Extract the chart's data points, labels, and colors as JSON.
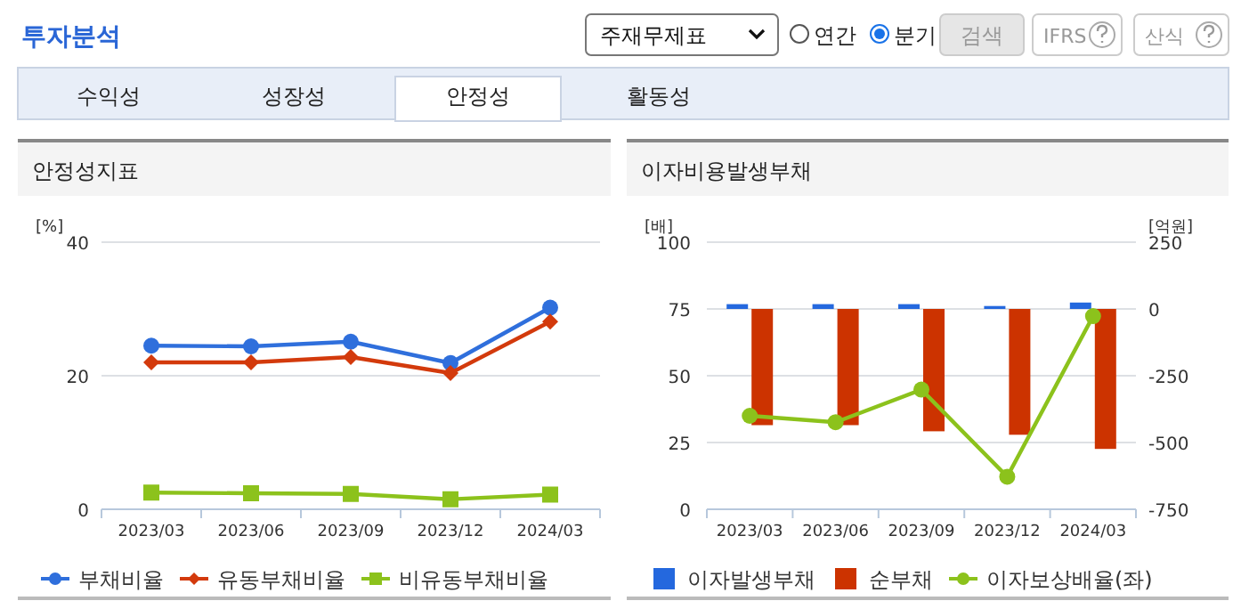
{
  "chart_data": [
    {
      "type": "other",
      "title": "투자분석",
      "annotations": [
        "주재무제표",
        "연간",
        "분기",
        "검색",
        "IFRS",
        "산식",
        "수익성",
        "성장성",
        "안정성",
        "활동성"
      ]
    },
    {
      "type": "line",
      "title": "안정성지표",
      "ylabel": "[%]",
      "categories": [
        "2023/03",
        "2023/06",
        "2023/09",
        "2023/12",
        "2024/03"
      ],
      "ylim": [
        0,
        40
      ],
      "yticks": [
        0,
        20,
        40
      ],
      "grid": "y",
      "legend": "bottom",
      "series": [
        {
          "name": "부채비율",
          "color": "#2f6fdc",
          "marker": "circle",
          "values": [
            24.5,
            24.4,
            25.1,
            21.9,
            30.2
          ]
        },
        {
          "name": "유동부채비율",
          "color": "#d33a0c",
          "marker": "diamond",
          "values": [
            22.0,
            22.0,
            22.8,
            20.4,
            28.1
          ]
        },
        {
          "name": "비유동부채비율",
          "color": "#8cc21c",
          "marker": "square",
          "values": [
            2.5,
            2.4,
            2.3,
            1.5,
            2.2
          ]
        }
      ]
    },
    {
      "type": "bar",
      "title": "이자비용발생부채",
      "ylabel": "[배]",
      "y2label": "[억원]",
      "categories": [
        "2023/03",
        "2023/06",
        "2023/09",
        "2023/12",
        "2024/03"
      ],
      "ylim": [
        0,
        100
      ],
      "yticks": [
        0,
        25,
        50,
        75,
        100
      ],
      "y2lim": [
        -750,
        250
      ],
      "y2ticks": [
        -750,
        -500,
        -250,
        0,
        250
      ],
      "grid": "y",
      "legend": "bottom",
      "series": [
        {
          "name": "이자발생부채",
          "color": "#2468de",
          "type": "bar",
          "axis": "y2",
          "values": [
            18,
            18,
            18,
            11,
            24
          ]
        },
        {
          "name": "순부채",
          "color": "#cc3300",
          "type": "bar",
          "axis": "y2",
          "values": [
            -435,
            -435,
            -458,
            -471,
            -524
          ]
        },
        {
          "name": "이자보상배율(좌)",
          "color": "#8cc21c",
          "type": "line",
          "marker": "circle",
          "axis": "y",
          "values": [
            35.0,
            32.6,
            44.8,
            12.2,
            72.3
          ]
        }
      ]
    }
  ]
}
